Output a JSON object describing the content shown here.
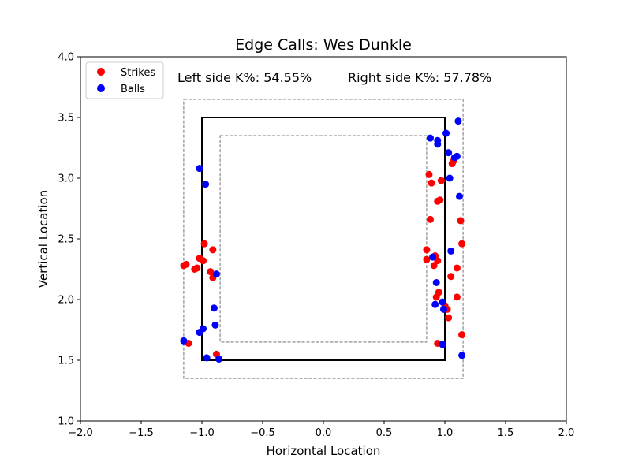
{
  "chart_data": {
    "type": "scatter",
    "title": "Edge Calls: Wes Dunkle",
    "xlabel": "Horizontal Location",
    "ylabel": "Vertical Location",
    "xlim": [
      -2.0,
      2.0
    ],
    "ylim": [
      1.0,
      4.0
    ],
    "xticks": [
      -2.0,
      -1.5,
      -1.0,
      -0.5,
      0.0,
      0.5,
      1.0,
      1.5,
      2.0
    ],
    "yticks": [
      1.0,
      1.5,
      2.0,
      2.5,
      3.0,
      3.5,
      4.0
    ],
    "xtick_labels": [
      "−2.0",
      "−1.5",
      "−1.0",
      "−0.5",
      "0.0",
      "0.5",
      "1.0",
      "1.5",
      "2.0"
    ],
    "ytick_labels": [
      "1.0",
      "1.5",
      "2.0",
      "2.5",
      "3.0",
      "3.5",
      "4.0"
    ],
    "grid": false,
    "legend_position": "top-left",
    "annotations": {
      "left": "Left side K%: 54.55%",
      "right": "Right side K%: 57.78%"
    },
    "zones": {
      "strike_zone": {
        "x": [
          -1.0,
          1.0
        ],
        "y": [
          1.5,
          3.5
        ],
        "style": "solid",
        "color": "#000000"
      },
      "outer_edge": {
        "x": [
          -1.15,
          1.15
        ],
        "y": [
          1.35,
          3.65
        ],
        "style": "dashed",
        "color": "#808080"
      },
      "inner_edge": {
        "x": [
          -0.85,
          0.85
        ],
        "y": [
          1.65,
          3.35
        ],
        "style": "dashed",
        "color": "#808080"
      }
    },
    "series": [
      {
        "name": "Strikes",
        "color": "#ff0000",
        "points": [
          [
            -1.15,
            2.28
          ],
          [
            -1.13,
            2.29
          ],
          [
            -1.11,
            1.64
          ],
          [
            -1.06,
            2.25
          ],
          [
            -1.04,
            2.26
          ],
          [
            -1.02,
            2.34
          ],
          [
            -0.99,
            2.32
          ],
          [
            -0.98,
            2.46
          ],
          [
            -0.93,
            2.23
          ],
          [
            -0.91,
            2.41
          ],
          [
            -0.91,
            2.18
          ],
          [
            -0.88,
            1.55
          ],
          [
            0.85,
            2.41
          ],
          [
            0.85,
            2.33
          ],
          [
            0.87,
            3.03
          ],
          [
            0.88,
            2.66
          ],
          [
            0.89,
            2.96
          ],
          [
            0.91,
            2.28
          ],
          [
            0.92,
            2.36
          ],
          [
            0.93,
            2.02
          ],
          [
            0.94,
            2.32
          ],
          [
            0.94,
            2.81
          ],
          [
            0.95,
            2.06
          ],
          [
            0.96,
            2.82
          ],
          [
            0.97,
            2.98
          ],
          [
            0.94,
            1.64
          ],
          [
            1.0,
            1.95
          ],
          [
            1.02,
            1.92
          ],
          [
            1.03,
            1.85
          ],
          [
            1.05,
            2.19
          ],
          [
            1.06,
            3.12
          ],
          [
            1.07,
            3.14
          ],
          [
            1.1,
            2.26
          ],
          [
            1.1,
            2.02
          ],
          [
            1.13,
            2.65
          ],
          [
            1.14,
            2.46
          ],
          [
            1.14,
            1.71
          ]
        ]
      },
      {
        "name": "Balls",
        "color": "#0000ff",
        "points": [
          [
            -1.15,
            1.66
          ],
          [
            -1.02,
            3.08
          ],
          [
            -1.02,
            1.73
          ],
          [
            -0.99,
            1.76
          ],
          [
            -0.97,
            2.95
          ],
          [
            -0.96,
            1.52
          ],
          [
            -0.9,
            1.93
          ],
          [
            -0.89,
            1.79
          ],
          [
            -0.88,
            2.21
          ],
          [
            -0.86,
            1.51
          ],
          [
            0.88,
            3.33
          ],
          [
            0.9,
            2.35
          ],
          [
            0.92,
            1.96
          ],
          [
            0.93,
            2.14
          ],
          [
            0.94,
            3.31
          ],
          [
            0.94,
            3.28
          ],
          [
            0.98,
            1.63
          ],
          [
            0.98,
            1.98
          ],
          [
            0.99,
            1.92
          ],
          [
            1.01,
            3.37
          ],
          [
            1.03,
            3.21
          ],
          [
            1.04,
            3.0
          ],
          [
            1.05,
            2.4
          ],
          [
            1.08,
            3.17
          ],
          [
            1.1,
            3.18
          ],
          [
            1.11,
            3.47
          ],
          [
            1.12,
            2.85
          ],
          [
            1.14,
            1.54
          ]
        ]
      }
    ]
  }
}
